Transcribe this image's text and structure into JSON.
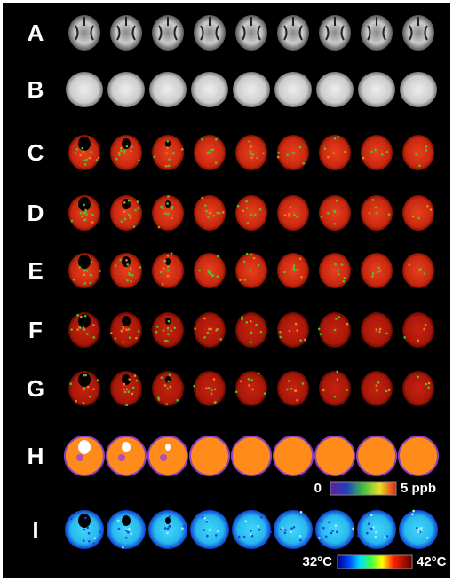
{
  "panels": [
    {
      "label": "A"
    },
    {
      "label": "B"
    },
    {
      "label": "C"
    },
    {
      "label": "D"
    },
    {
      "label": "E"
    },
    {
      "label": "F"
    },
    {
      "label": "G"
    },
    {
      "label": "H"
    },
    {
      "label": "I"
    }
  ],
  "colorbars": [
    {
      "min_label": "0",
      "max_label": "5 ppb"
    },
    {
      "min_label": "32°C",
      "max_label": "42°C"
    }
  ]
}
